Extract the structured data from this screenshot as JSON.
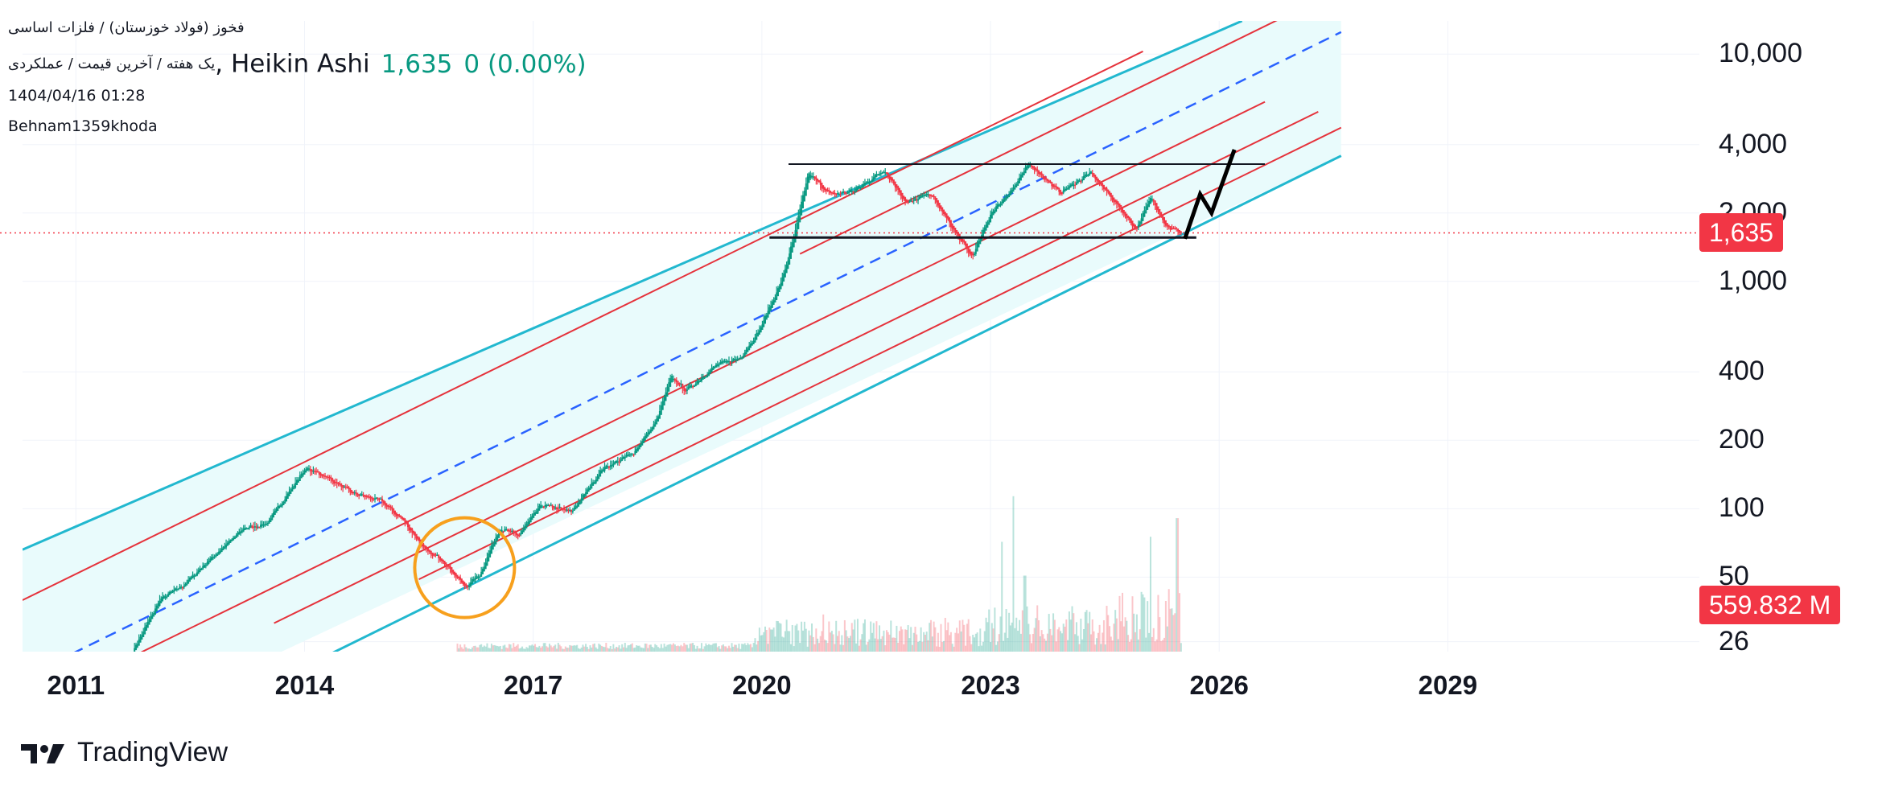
{
  "header": {
    "symbol_line": "فخوز (فولاد خوزستان) / فلزات اساسی",
    "interval_line": "یک هفته / آخرین قیمت / عملکردی",
    "chart_type": "Heikin Ashi",
    "last_price": "1,635",
    "change": "0 (0.00%)",
    "datetime": "1404/04/16 01:28",
    "author": "Behnam1359khoda"
  },
  "price_badge": {
    "label": "1,635",
    "color": "#f23645"
  },
  "volume_badge": {
    "label": "559.832 M",
    "color": "#f23645"
  },
  "footer": {
    "brand": "TradingView"
  },
  "colors": {
    "up": "#089981",
    "down": "#f23645",
    "channel": "#22b8cf",
    "median": "#2962ff",
    "inner": "#e5323b",
    "circle": "#f7a01d",
    "fill": "#e9fbfc"
  },
  "chart_data": {
    "type": "candlestick",
    "title": "",
    "y_scale": "log",
    "y_ticks": [
      {
        "value": 10000,
        "label": "10,000"
      },
      {
        "value": 4000,
        "label": "4,000"
      },
      {
        "value": 2000,
        "label": "2,000"
      },
      {
        "value": 1000,
        "label": "1,000"
      },
      {
        "value": 400,
        "label": "400"
      },
      {
        "value": 200,
        "label": "200"
      },
      {
        "value": 100,
        "label": "100"
      },
      {
        "value": 50,
        "label": "50"
      },
      {
        "value": 26,
        "label": "26"
      }
    ],
    "x_ticks": [
      "2011",
      "2014",
      "2017",
      "2020",
      "2023",
      "2026",
      "2029"
    ],
    "x_range": [
      2010.3,
      2032.3
    ],
    "y_range": [
      23.5,
      14000
    ],
    "last_price": 1635,
    "price_path": [
      [
        2011.75,
        24
      ],
      [
        2012.1,
        40
      ],
      [
        2012.4,
        46
      ],
      [
        2012.8,
        62
      ],
      [
        2013.2,
        82
      ],
      [
        2013.5,
        86
      ],
      [
        2013.8,
        120
      ],
      [
        2014.0,
        150
      ],
      [
        2014.25,
        140
      ],
      [
        2014.6,
        118
      ],
      [
        2015.0,
        108
      ],
      [
        2015.3,
        88
      ],
      [
        2015.6,
        64
      ],
      [
        2015.8,
        60
      ],
      [
        2016.1,
        45
      ],
      [
        2016.3,
        52
      ],
      [
        2016.55,
        82
      ],
      [
        2016.8,
        76
      ],
      [
        2017.1,
        104
      ],
      [
        2017.5,
        97
      ],
      [
        2017.9,
        150
      ],
      [
        2018.3,
        175
      ],
      [
        2018.6,
        240
      ],
      [
        2018.8,
        380
      ],
      [
        2019.0,
        330
      ],
      [
        2019.4,
        430
      ],
      [
        2019.7,
        460
      ],
      [
        2019.95,
        600
      ],
      [
        2020.25,
        1000
      ],
      [
        2020.4,
        1500
      ],
      [
        2020.6,
        3000
      ],
      [
        2020.9,
        2400
      ],
      [
        2021.2,
        2500
      ],
      [
        2021.6,
        3100
      ],
      [
        2021.9,
        2200
      ],
      [
        2022.2,
        2450
      ],
      [
        2022.5,
        1700
      ],
      [
        2022.75,
        1280
      ],
      [
        2023.0,
        2000
      ],
      [
        2023.3,
        2600
      ],
      [
        2023.5,
        3300
      ],
      [
        2023.9,
        2450
      ],
      [
        2024.3,
        3000
      ],
      [
        2024.6,
        2300
      ],
      [
        2024.9,
        1700
      ],
      [
        2025.1,
        2350
      ],
      [
        2025.3,
        1750
      ],
      [
        2025.5,
        1635
      ]
    ],
    "volume_spikes": [
      [
        2023.3,
        0.92
      ],
      [
        2023.15,
        0.65
      ],
      [
        2023.45,
        0.45
      ],
      [
        2025.1,
        0.68
      ],
      [
        2025.45,
        0.79
      ],
      [
        2025.3,
        0.3
      ],
      [
        2020.8,
        0.22
      ],
      [
        2021.5,
        0.18
      ],
      [
        2022.4,
        0.2
      ]
    ],
    "annotations": {
      "channel_upper": [
        [
          2010.3,
          66
        ],
        [
          2026.3,
          14000
        ]
      ],
      "channel_lower": [
        [
          2013.7,
          18
        ],
        [
          2027.6,
          3570
        ]
      ],
      "median": [
        [
          2010.3,
          18
        ],
        [
          2027.6,
          12500
        ]
      ],
      "resistance": {
        "y": 3280,
        "x": [
          2020.35,
          2026.6
        ]
      },
      "support": {
        "y": 1560,
        "x": [
          2020.1,
          2025.7
        ]
      },
      "projection": [
        [
          2025.55,
          1540
        ],
        [
          2025.75,
          2420
        ],
        [
          2025.9,
          2000
        ],
        [
          2026.2,
          3800
        ]
      ],
      "circle": {
        "x": 2016.1,
        "y": 55
      }
    }
  }
}
